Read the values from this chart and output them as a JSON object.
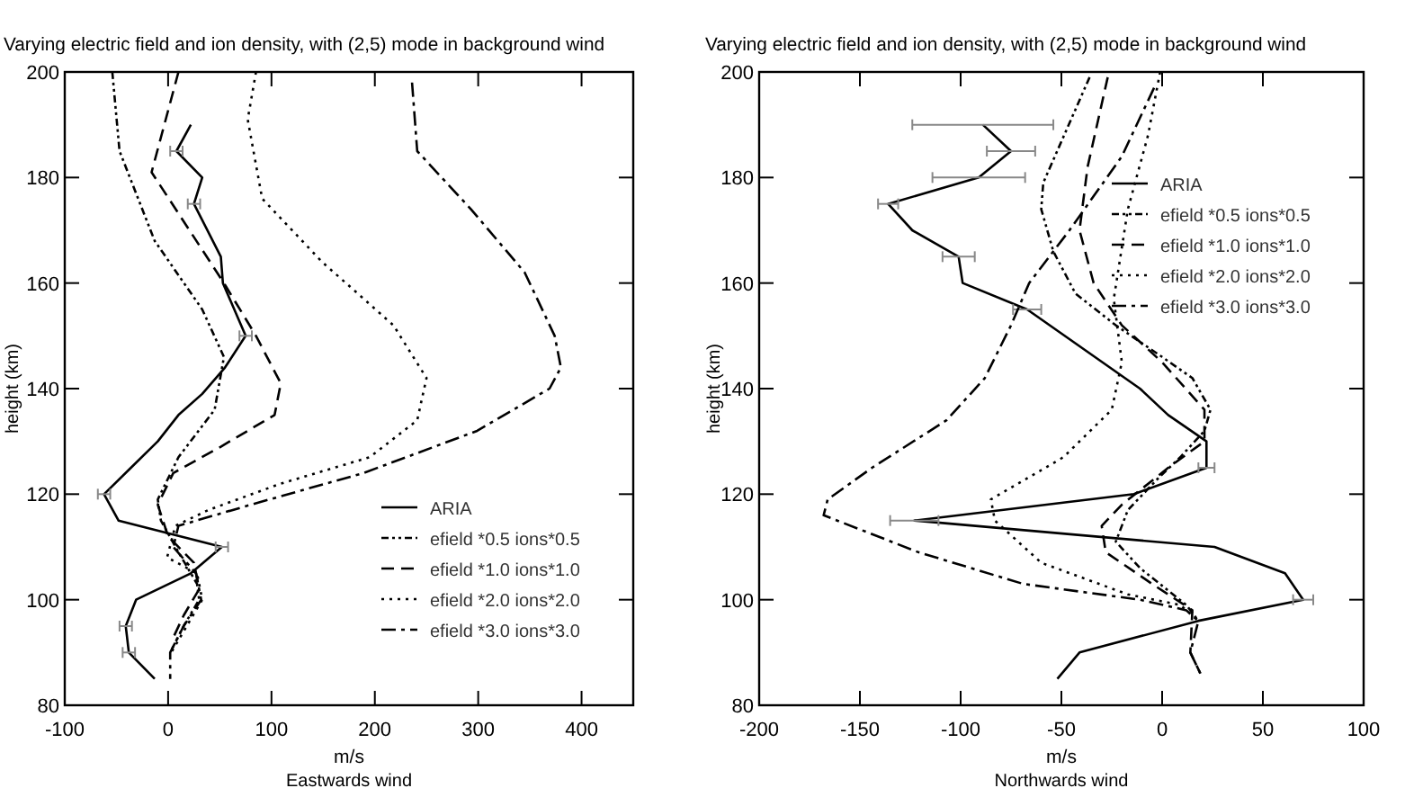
{
  "chart_data": [
    {
      "type": "line",
      "title": "Varying electric field and ion density, with (2,5) mode in background wind",
      "xlabel": "m/s",
      "ylabel": "height (km)",
      "annotations": [
        "Eastwards wind"
      ],
      "xlim": [
        -100,
        450
      ],
      "xticks": [
        -100,
        0,
        100,
        200,
        300,
        400
      ],
      "ylim": [
        80,
        200
      ],
      "yticks": [
        80,
        100,
        120,
        140,
        160,
        180,
        200
      ],
      "legend": "bottom right",
      "series": [
        {
          "name": "ARIA",
          "color": "#000000",
          "line_style": "solid",
          "x": [
            22,
            8,
            33,
            25,
            51,
            53,
            75,
            55,
            33,
            10,
            -10,
            -36,
            -62,
            -48,
            52,
            22,
            -31,
            -41,
            -38,
            -13
          ],
          "values": [
            190,
            185,
            180,
            175,
            165,
            160,
            150,
            144,
            139,
            135,
            130,
            125,
            120,
            115,
            110,
            105,
            100,
            95,
            90,
            85
          ],
          "xerrors": [
            null,
            6,
            null,
            6,
            null,
            null,
            6,
            null,
            null,
            null,
            null,
            null,
            6,
            null,
            6,
            null,
            null,
            6,
            6,
            null
          ]
        },
        {
          "name": "efield *0.5 ions*0.5",
          "color": "#000000",
          "line_style": "dashdotdot",
          "x": [
            -54,
            -47,
            -13,
            33,
            54,
            45,
            10,
            -10,
            -7,
            10,
            28,
            30,
            15,
            2
          ],
          "values": [
            200,
            185,
            168,
            155,
            146,
            136,
            127,
            119,
            115,
            109,
            103,
            100,
            95,
            90
          ]
        },
        {
          "name": "efield *1.0 ions*1.0",
          "color": "#000000",
          "line_style": "dashed",
          "x": [
            10,
            -16,
            54,
            85,
            109,
            103,
            51,
            5,
            -10,
            0,
            25,
            30,
            15,
            3
          ],
          "values": [
            200,
            181,
            160,
            150,
            141,
            135,
            129,
            124,
            118,
            112,
            107,
            102,
            97,
            92
          ]
        },
        {
          "name": "efield *2.0 ions*2.0",
          "color": "#000000",
          "line_style": "dotted",
          "x": [
            85,
            77,
            91,
            149,
            218,
            250,
            241,
            195,
            109,
            39,
            7,
            -1,
            28,
            33,
            18,
            3
          ],
          "values": [
            200,
            191,
            176,
            164,
            152,
            142,
            134,
            127,
            122,
            117,
            114,
            108,
            105,
            100,
            95,
            90
          ]
        },
        {
          "name": "efield *3.0 ions*3.0",
          "color": "#000000",
          "line_style": "dashdot",
          "x": [
            236,
            241,
            293,
            345,
            374,
            380,
            369,
            299,
            189,
            80,
            10,
            5,
            27,
            32,
            15,
            2,
            2
          ],
          "values": [
            198,
            185,
            174,
            162,
            150,
            144,
            140,
            132,
            124,
            118,
            114,
            110,
            105,
            100,
            95,
            90,
            85
          ]
        }
      ]
    },
    {
      "type": "line",
      "title": "Varying electric field and ion density, with (2,5) mode in background wind",
      "xlabel": "m/s",
      "ylabel": "height (km)",
      "annotations": [
        "Northwards wind"
      ],
      "xlim": [
        -200,
        100
      ],
      "xticks": [
        -200,
        -150,
        -100,
        -50,
        0,
        50,
        100
      ],
      "ylim": [
        80,
        200
      ],
      "yticks": [
        80,
        100,
        120,
        140,
        160,
        180,
        200
      ],
      "legend": "top right",
      "series": [
        {
          "name": "ARIA",
          "color": "#000000",
          "line_style": "solid",
          "x": [
            -89,
            -75,
            -91,
            -136,
            -124,
            -101,
            -99,
            -67,
            -11,
            3,
            22,
            22,
            -14,
            -123,
            26,
            61,
            70,
            18,
            -41,
            -52
          ],
          "values": [
            190,
            185,
            180,
            175,
            170,
            165,
            160,
            155,
            140,
            135,
            130,
            125,
            120,
            115,
            110,
            105,
            100,
            96,
            90,
            85
          ],
          "xerrors": [
            35,
            12,
            23,
            5,
            null,
            8,
            null,
            7,
            null,
            null,
            null,
            4,
            null,
            12,
            null,
            null,
            5,
            null,
            null,
            null
          ]
        },
        {
          "name": "efield *0.5 ions*0.5",
          "color": "#000000",
          "line_style": "dashdotdot",
          "x": [
            -36,
            -59,
            -60,
            -54,
            -43,
            -23,
            0,
            15,
            24,
            21,
            9,
            -2,
            -17,
            -23,
            -11,
            12,
            18
          ],
          "values": [
            199,
            179,
            174,
            166,
            158,
            152,
            146,
            142,
            136,
            132,
            127,
            123,
            117,
            111,
            106,
            99,
            96
          ]
        },
        {
          "name": "efield *1.0 ions*1.0",
          "color": "#000000",
          "line_style": "dashed",
          "x": [
            -27,
            -37,
            -41,
            -34,
            -20,
            0,
            21,
            21,
            3,
            -20,
            -30,
            -28,
            -5,
            15,
            14,
            19
          ],
          "values": [
            199,
            182,
            170,
            160,
            152,
            145,
            136,
            130,
            125,
            118,
            114,
            109,
            103,
            98,
            90,
            86
          ]
        },
        {
          "name": "efield *2.0 ions*2.0",
          "color": "#000000",
          "line_style": "dotted",
          "x": [
            -1,
            -7,
            -17,
            -24,
            -20,
            -25,
            -49,
            -85,
            -83,
            -60,
            -17,
            9,
            18
          ],
          "values": [
            200,
            188,
            174,
            157,
            145,
            136,
            127,
            119,
            115,
            107,
            101,
            99,
            96
          ]
        },
        {
          "name": "efield *3.0 ions*3.0",
          "color": "#000000",
          "line_style": "dashdot",
          "x": [
            -4,
            -20,
            -46,
            -66,
            -75,
            -88,
            -107,
            -144,
            -166,
            -168,
            -121,
            -69,
            -11,
            12,
            18,
            14,
            19
          ],
          "values": [
            197,
            184,
            170,
            160,
            152,
            142,
            134,
            125,
            119,
            116,
            109,
            103,
            100,
            98,
            96,
            90,
            86
          ]
        }
      ]
    }
  ]
}
